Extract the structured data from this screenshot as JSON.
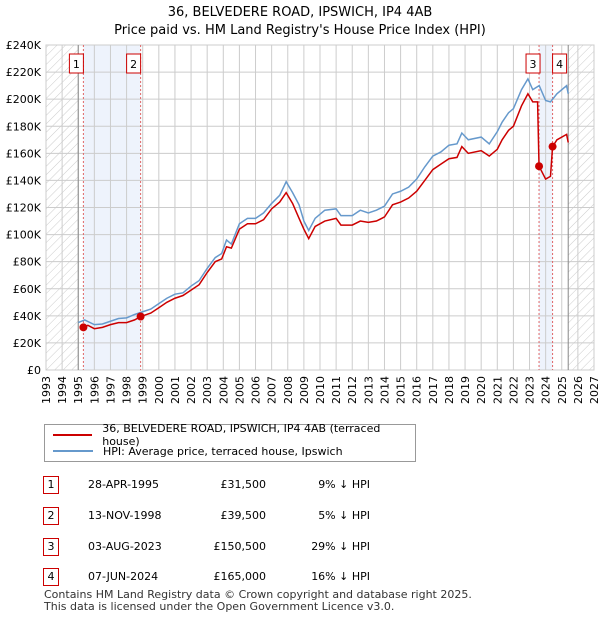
{
  "chart_data": {
    "type": "line",
    "title": "36, BELVEDERE ROAD, IPSWICH, IP4 4AB",
    "subtitle": "Price paid vs. HM Land Registry's House Price Index (HPI)",
    "xlim": [
      1993,
      2027
    ],
    "ylim": [
      0,
      240000
    ],
    "x_ticks": [
      "1993",
      "1994",
      "1995",
      "1996",
      "1997",
      "1998",
      "1999",
      "2000",
      "2001",
      "2002",
      "2003",
      "2004",
      "2005",
      "2006",
      "2007",
      "2008",
      "2009",
      "2010",
      "2011",
      "2012",
      "2013",
      "2014",
      "2015",
      "2016",
      "2017",
      "2018",
      "2019",
      "2020",
      "2021",
      "2022",
      "2023",
      "2024",
      "2025",
      "2026",
      "2027"
    ],
    "y_ticks": [
      {
        "v": 0,
        "l": "£0"
      },
      {
        "v": 20000,
        "l": "£20K"
      },
      {
        "v": 40000,
        "l": "£40K"
      },
      {
        "v": 60000,
        "l": "£60K"
      },
      {
        "v": 80000,
        "l": "£80K"
      },
      {
        "v": 100000,
        "l": "£100K"
      },
      {
        "v": 120000,
        "l": "£120K"
      },
      {
        "v": 140000,
        "l": "£140K"
      },
      {
        "v": 160000,
        "l": "£160K"
      },
      {
        "v": 180000,
        "l": "£180K"
      },
      {
        "v": 200000,
        "l": "£200K"
      },
      {
        "v": 220000,
        "l": "£220K"
      },
      {
        "v": 240000,
        "l": "£240K"
      }
    ],
    "grid": true,
    "data_range": [
      1995.0,
      2025.4
    ],
    "series": [
      {
        "name": "36, BELVEDERE ROAD, IPSWICH, IP4 4AB (terraced house)",
        "color": "#cc0000",
        "x": [
          1995.32,
          1995.6,
          1996,
          1996.5,
          1997,
          1997.5,
          1998,
          1998.5,
          1998.87,
          1999.5,
          2000,
          2000.5,
          2001,
          2001.5,
          2002,
          2002.5,
          2003,
          2003.5,
          2003.9,
          2004.2,
          2004.5,
          2005,
          2005.5,
          2006,
          2006.5,
          2007,
          2007.5,
          2007.9,
          2008.3,
          2008.7,
          2009.0,
          2009.3,
          2009.7,
          2010.3,
          2011,
          2011.3,
          2012,
          2012.5,
          2013,
          2013.5,
          2014,
          2014.5,
          2015,
          2015.5,
          2016,
          2016.5,
          2017,
          2017.5,
          2018,
          2018.5,
          2018.8,
          2019.2,
          2020,
          2020.5,
          2021,
          2021.3,
          2021.7,
          2022,
          2022.5,
          2022.9,
          2023.2,
          2023.5,
          2023.59,
          2024.0,
          2024.3,
          2024.43,
          2024.7,
          2025.3,
          2025.4
        ],
        "y": [
          31500,
          33000,
          30500,
          31500,
          33500,
          35000,
          35000,
          37000,
          39500,
          42000,
          46000,
          50000,
          53000,
          55000,
          59000,
          63000,
          72000,
          80000,
          82000,
          91000,
          90000,
          104000,
          108000,
          108000,
          111000,
          119000,
          124000,
          131000,
          123000,
          112000,
          104000,
          97000,
          106000,
          110000,
          112000,
          107000,
          107000,
          110000,
          109000,
          110000,
          113000,
          122000,
          124000,
          127000,
          132000,
          140000,
          148000,
          152000,
          156000,
          157000,
          165000,
          160000,
          162000,
          158000,
          163000,
          170000,
          177000,
          180000,
          195000,
          204000,
          198000,
          198000,
          150500,
          141000,
          143000,
          165000,
          170000,
          174000,
          168000
        ]
      },
      {
        "name": "HPI: Average price, terraced house, Ipswich",
        "color": "#6699cc",
        "x": [
          1995.0,
          1995.4,
          1996,
          1996.5,
          1997,
          1997.5,
          1998,
          1998.5,
          1999,
          1999.5,
          2000,
          2000.5,
          2001,
          2001.5,
          2002,
          2002.5,
          2003,
          2003.5,
          2003.9,
          2004.2,
          2004.5,
          2005,
          2005.5,
          2006,
          2006.5,
          2007,
          2007.5,
          2007.9,
          2008.3,
          2008.7,
          2009.0,
          2009.3,
          2009.7,
          2010.3,
          2011,
          2011.3,
          2012,
          2012.5,
          2013,
          2013.5,
          2014,
          2014.5,
          2015,
          2015.5,
          2016,
          2016.5,
          2017,
          2017.5,
          2018,
          2018.5,
          2018.8,
          2019.2,
          2020,
          2020.5,
          2021,
          2021.3,
          2021.7,
          2022,
          2022.5,
          2022.9,
          2023.2,
          2023.6,
          2024.0,
          2024.3,
          2024.7,
          2025.3,
          2025.4
        ],
        "y": [
          35000,
          37000,
          33500,
          34000,
          36000,
          38000,
          38500,
          41000,
          43000,
          45000,
          49000,
          53000,
          56000,
          57000,
          62000,
          66000,
          75000,
          83000,
          86000,
          96000,
          93000,
          108000,
          112000,
          112000,
          116000,
          123000,
          129000,
          139000,
          131000,
          122000,
          110000,
          103000,
          112000,
          118000,
          119000,
          114000,
          114000,
          118000,
          116000,
          118000,
          121000,
          130000,
          132000,
          135000,
          141000,
          150000,
          158000,
          161000,
          166000,
          167000,
          175000,
          170000,
          172000,
          167000,
          176000,
          183000,
          190000,
          193000,
          207000,
          215000,
          207000,
          210000,
          199000,
          198000,
          204000,
          210000,
          204000
        ]
      }
    ],
    "markers": [
      {
        "label": "1",
        "x": 1995.32,
        "y": 31500
      },
      {
        "label": "2",
        "x": 1998.87,
        "y": 39500
      },
      {
        "label": "3",
        "x": 2023.59,
        "y": 150500
      },
      {
        "label": "4",
        "x": 2024.43,
        "y": 165000
      }
    ],
    "shaded": [
      [
        1995.32,
        1998.87
      ],
      [
        2023.59,
        2024.43
      ]
    ]
  },
  "legend": {
    "red": "36, BELVEDERE ROAD, IPSWICH, IP4 4AB (terraced house)",
    "blue": "HPI: Average price, terraced house, Ipswich"
  },
  "transactions": [
    {
      "n": "1",
      "date": "28-APR-1995",
      "price": "£31,500",
      "hpi": "9% ↓ HPI"
    },
    {
      "n": "2",
      "date": "13-NOV-1998",
      "price": "£39,500",
      "hpi": "5% ↓ HPI"
    },
    {
      "n": "3",
      "date": "03-AUG-2023",
      "price": "£150,500",
      "hpi": "29% ↓ HPI"
    },
    {
      "n": "4",
      "date": "07-JUN-2024",
      "price": "£165,000",
      "hpi": "16% ↓ HPI"
    }
  ],
  "footer": {
    "line1": "Contains HM Land Registry data © Crown copyright and database right 2025.",
    "line2": "This data is licensed under the Open Government Licence v3.0."
  }
}
